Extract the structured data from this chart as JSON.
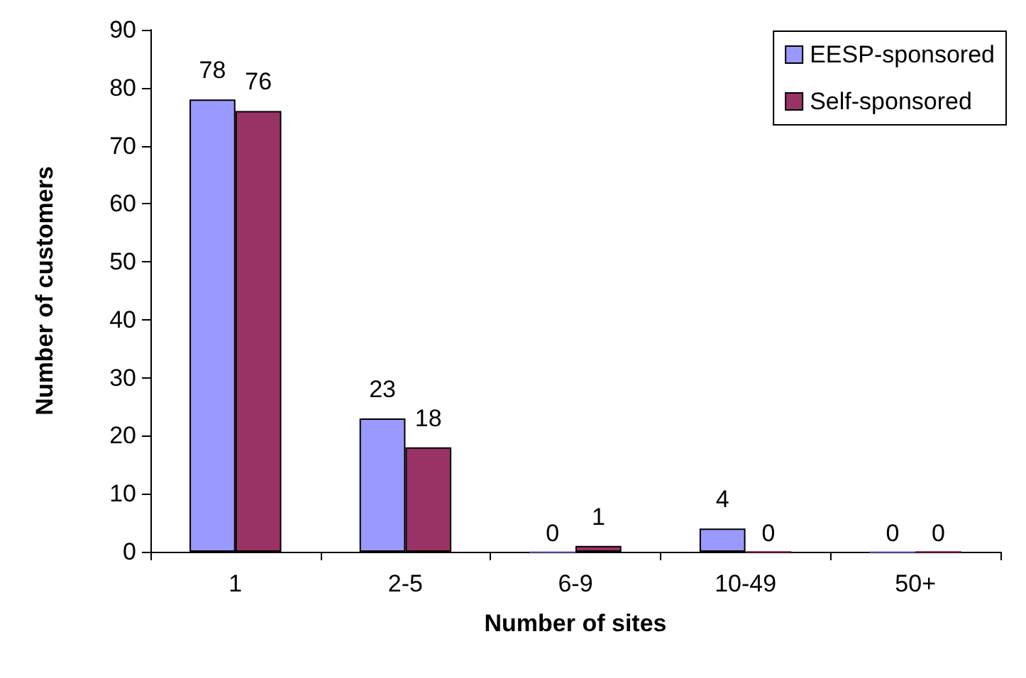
{
  "chart_data": {
    "type": "bar",
    "xlabel": "Number of sites",
    "ylabel": "Number of customers",
    "categories": [
      "1",
      "2-5",
      "6-9",
      "10-49",
      "50+"
    ],
    "series": [
      {
        "name": "EESP-sponsored",
        "color": "#9999ff",
        "values": [
          78,
          23,
          0,
          4,
          0
        ]
      },
      {
        "name": "Self-sponsored",
        "color": "#993366",
        "values": [
          76,
          18,
          1,
          0,
          0
        ]
      }
    ],
    "ylim": [
      0,
      90
    ],
    "yticks": [
      0,
      10,
      20,
      30,
      40,
      50,
      60,
      70,
      80,
      90
    ],
    "grid": false,
    "legend": "top right",
    "data_labels": true
  }
}
